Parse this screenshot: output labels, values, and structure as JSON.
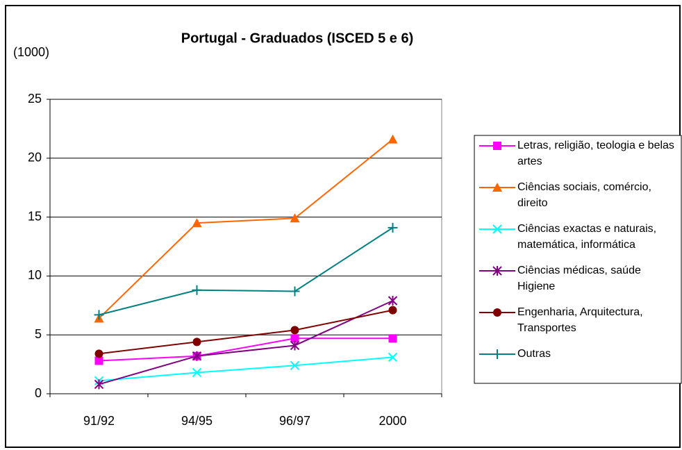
{
  "chart_data": {
    "type": "line",
    "title": "Portugal - Graduados (ISCED 5 e 6)",
    "y_label": "(1000)",
    "categories": [
      "91/92",
      "94/95",
      "96/97",
      "2000"
    ],
    "ylim": [
      0,
      25
    ],
    "yticks": [
      0,
      5,
      10,
      15,
      20,
      25
    ],
    "grid": true,
    "legend": "right",
    "series": [
      {
        "name": "Letras, religião, teologia e belas artes",
        "color": "#ff00ff",
        "marker": "square",
        "values": [
          2.8,
          3.2,
          4.7,
          4.7
        ]
      },
      {
        "name": "Ciências sociais, comércio, direito",
        "color": "#ff6600",
        "marker": "triangle",
        "values": [
          6.4,
          14.5,
          14.9,
          21.6
        ]
      },
      {
        "name": "Ciências exactas e naturais, matemática, informática",
        "color": "#00ffff",
        "marker": "x",
        "values": [
          1.1,
          1.8,
          2.4,
          3.1
        ]
      },
      {
        "name": "Ciências médicas, saúde Higiene",
        "color": "#800080",
        "marker": "asterisk",
        "values": [
          0.8,
          3.2,
          4.1,
          7.9
        ]
      },
      {
        "name": "Engenharia, Arquitectura, Transportes",
        "color": "#800000",
        "marker": "circle",
        "values": [
          3.4,
          4.4,
          5.4,
          7.1
        ]
      },
      {
        "name": "Outras",
        "color": "#008080",
        "marker": "plus",
        "values": [
          6.7,
          8.8,
          8.7,
          14.1
        ]
      }
    ]
  }
}
